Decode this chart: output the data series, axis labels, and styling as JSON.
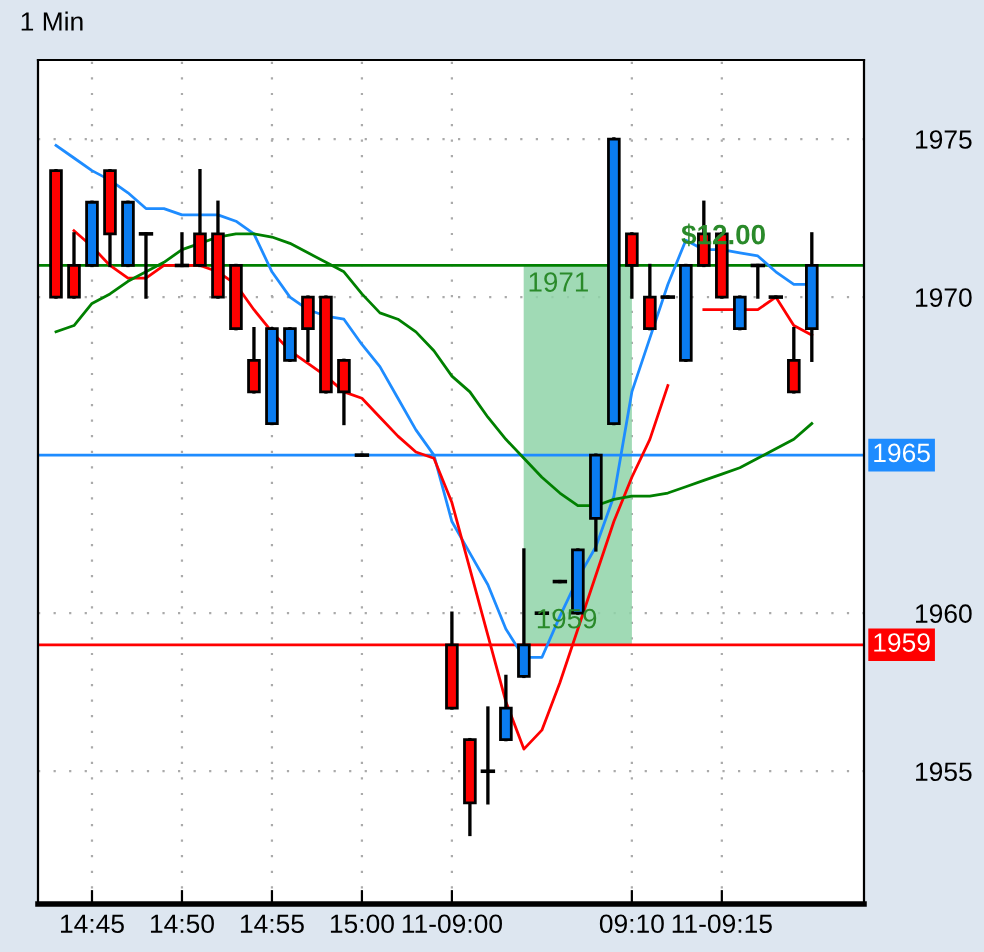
{
  "chart_data": {
    "type": "candlestick",
    "title": "1 Min",
    "categories": [
      null,
      null,
      "14:45",
      null,
      null,
      null,
      null,
      "14:50",
      null,
      null,
      null,
      null,
      "14:55",
      null,
      null,
      null,
      null,
      "15:00",
      null,
      null,
      null,
      null,
      "11-09:00",
      null,
      null,
      null,
      null,
      null,
      null,
      null,
      null,
      null,
      "09:10",
      null,
      null,
      null,
      null,
      "11-09:15",
      null,
      null,
      null,
      null,
      null
    ],
    "ohlc": [
      [
        1974,
        1974,
        1970,
        1970
      ],
      [
        1971,
        1972,
        1970,
        1970
      ],
      [
        1971,
        1973,
        1971,
        1973
      ],
      [
        1974,
        1974,
        1971,
        1972
      ],
      [
        1971,
        1973,
        1971,
        1973
      ],
      [
        1972,
        1972,
        1970,
        1972
      ],
      null,
      [
        1971,
        1972,
        1971,
        1971
      ],
      [
        1972,
        1974,
        1971,
        1971
      ],
      [
        1972,
        1973,
        1970,
        1970
      ],
      [
        1971,
        1971,
        1969,
        1969
      ],
      [
        1968,
        1969,
        1967,
        1967
      ],
      [
        1966,
        1969,
        1966,
        1969
      ],
      [
        1968,
        1969,
        1968,
        1969
      ],
      [
        1970,
        1970,
        1968,
        1969
      ],
      [
        1970,
        1970,
        1967,
        1967
      ],
      [
        1968,
        1968,
        1966,
        1967
      ],
      [
        1965,
        1965,
        1965,
        1965
      ],
      null,
      null,
      null,
      null,
      [
        1959,
        1960,
        1957,
        1957
      ],
      [
        1956,
        1956,
        1953,
        1954
      ],
      [
        1955,
        1957,
        1954,
        1955
      ],
      [
        1956,
        1958,
        1956,
        1957
      ],
      [
        1958,
        1962,
        1958,
        1959
      ],
      [
        1960,
        1960,
        1960,
        1960
      ],
      [
        1961,
        1961,
        1961,
        1961
      ],
      [
        1960,
        1962,
        1960,
        1962
      ],
      [
        1963,
        1965,
        1962,
        1965
      ],
      [
        1966,
        1975,
        1966,
        1975
      ],
      [
        1972,
        1972,
        1970,
        1971
      ],
      [
        1970,
        1971,
        1969,
        1969
      ],
      [
        1970,
        1970,
        1970,
        1970
      ],
      [
        1968,
        1971,
        1968,
        1971
      ],
      [
        1972,
        1973,
        1971,
        1971
      ],
      [
        1972,
        1972,
        1970,
        1970
      ],
      [
        1969,
        1970,
        1969,
        1970
      ],
      [
        1971,
        1971,
        1970,
        1971
      ],
      [
        1970,
        1970,
        1970,
        1970
      ],
      [
        1968,
        1969,
        1967,
        1967
      ],
      [
        1969,
        1972,
        1968,
        1971
      ]
    ],
    "colors": [
      "#ff0000",
      "#ff0000",
      "#0a7cf0",
      "#ff0000",
      "#0a7cf0",
      "#000000",
      null,
      "#000000",
      "#ff0000",
      "#ff0000",
      "#ff0000",
      "#ff0000",
      "#0a7cf0",
      "#0a7cf0",
      "#ff0000",
      "#ff0000",
      "#ff0000",
      "#000000",
      null,
      null,
      null,
      null,
      "#ff0000",
      "#ff0000",
      "#000000",
      "#0a7cf0",
      "#0a7cf0",
      "#000000",
      "#000000",
      "#0a7cf0",
      "#0a7cf0",
      "#0a7cf0",
      "#ff0000",
      "#ff0000",
      "#000000",
      "#0a7cf0",
      "#ff0000",
      "#ff0000",
      "#0a7cf0",
      "#000000",
      "#000000",
      "#ff0000",
      "#0a7cf0"
    ],
    "series": [
      {
        "type": "line",
        "color": "#1e8cff",
        "values": [
          1974.8,
          1974.4,
          1974,
          1973.7,
          1973.3,
          1972.8,
          1972.8,
          1972.6,
          1972.6,
          1972.6,
          1972.4,
          1972,
          1970.8,
          1970,
          1969.6,
          1969.4,
          1969.3,
          1968.5,
          1967.8,
          1966.8,
          1965.8,
          1965,
          1962.9,
          1961.9,
          1960.9,
          1959.5,
          1958.6,
          1958.6,
          1959.9,
          1961.1,
          1962.1,
          1963.7,
          1967,
          1968.7,
          1970.4,
          1971.8,
          1971.5,
          1971.5,
          1971.4,
          1971.3,
          1970.8,
          1970.4,
          1970.4
        ]
      },
      {
        "type": "line",
        "color": "#ff0000",
        "values": [
          null,
          1972.1,
          1971.6,
          1971,
          1970.6,
          1970.6,
          1971,
          1971,
          1971,
          1970.8,
          1970.4,
          1969.6,
          1968.9,
          1968.3,
          1967.9,
          1967.5,
          1967,
          1966.8,
          1966.2,
          1965.6,
          1965.1,
          1964.9,
          1963.5,
          1961.4,
          1959.3,
          1957.2,
          1955.7,
          1956.3,
          1957.8,
          1959.5,
          1961.2,
          1962.9,
          1964.3,
          1965.5,
          1967.2,
          null,
          1969.6,
          1969.6,
          1969.6,
          1969.6,
          1970,
          1969.1,
          1968.8
        ]
      },
      {
        "type": "line",
        "color": "#008000",
        "values": [
          1968.9,
          1969.1,
          1969.8,
          1970.1,
          1970.5,
          1970.8,
          1971.1,
          1971.5,
          1971.7,
          1971.9,
          1972,
          1972,
          1971.9,
          1971.7,
          1971.4,
          1971.1,
          1970.8,
          1970.1,
          1969.5,
          1969.3,
          1968.9,
          1968.3,
          1967.5,
          1967,
          1966.2,
          1965.5,
          1964.9,
          1964.3,
          1963.8,
          1963.4,
          1963.4,
          1963.6,
          1963.7,
          1963.7,
          1963.8,
          1964,
          1964.2,
          1964.4,
          1964.6,
          1964.9,
          1965.2,
          1965.5,
          1966
        ]
      }
    ],
    "ylim": [
      1950.8,
      1977.5
    ],
    "yticks": [
      1955,
      1960,
      1970,
      1975
    ],
    "ref_lines": [
      {
        "axis": "y",
        "value": 1965,
        "label": "1965",
        "color": "#1e8cff"
      },
      {
        "axis": "y",
        "value": 1959,
        "label": "1959",
        "color": "#ff0000"
      },
      {
        "axis": "y",
        "value": 1971,
        "color": "#008000"
      }
    ],
    "annotations": [
      {
        "text": "1971",
        "y": 1971
      },
      {
        "text": "$12.00",
        "y": 1971
      },
      {
        "text": "1959",
        "y": 1959
      }
    ],
    "grid": true
  }
}
